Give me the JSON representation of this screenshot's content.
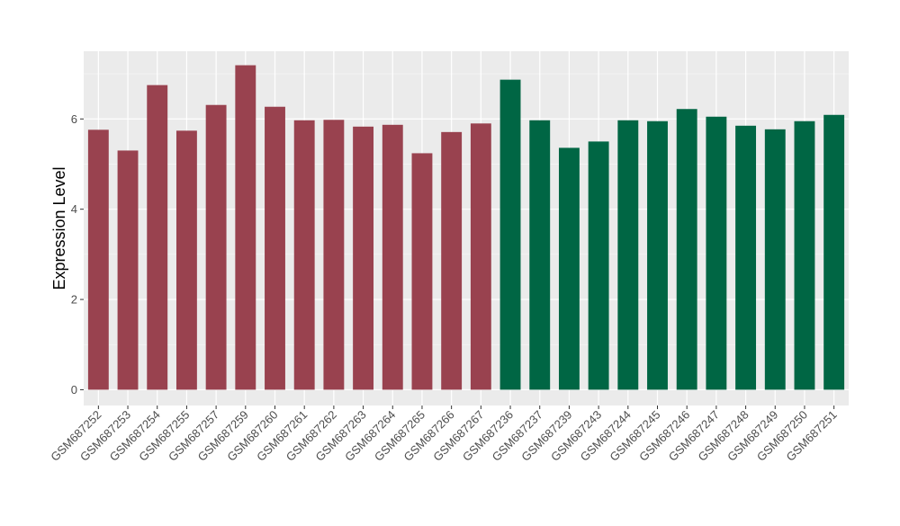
{
  "chart_data": {
    "type": "bar",
    "ylabel": "Expression Level",
    "ylim": [
      -0.35,
      7.5
    ],
    "yticks": [
      0,
      2,
      4,
      6
    ],
    "grid": true,
    "categories": [
      "GSM687252",
      "GSM687253",
      "GSM687254",
      "GSM687255",
      "GSM687257",
      "GSM687259",
      "GSM687260",
      "GSM687261",
      "GSM687262",
      "GSM687263",
      "GSM687264",
      "GSM687265",
      "GSM687266",
      "GSM687267",
      "GSM687236",
      "GSM687237",
      "GSM687239",
      "GSM687243",
      "GSM687244",
      "GSM687245",
      "GSM687246",
      "GSM687247",
      "GSM687248",
      "GSM687249",
      "GSM687250",
      "GSM687251"
    ],
    "values": [
      5.76,
      5.3,
      6.75,
      5.74,
      6.31,
      7.19,
      6.27,
      5.97,
      5.98,
      5.83,
      5.87,
      5.24,
      5.71,
      5.9,
      6.87,
      5.97,
      5.36,
      5.5,
      5.97,
      5.95,
      6.22,
      6.05,
      5.85,
      5.77,
      5.95,
      6.09
    ],
    "groups": [
      0,
      0,
      0,
      0,
      0,
      0,
      0,
      0,
      0,
      0,
      0,
      0,
      0,
      0,
      1,
      1,
      1,
      1,
      1,
      1,
      1,
      1,
      1,
      1,
      1,
      1
    ],
    "group_colors": [
      "#99424f",
      "#006644"
    ]
  },
  "colors": {
    "panel_bg": "#ebebeb",
    "grid_major": "#ffffff",
    "axis_text": "#4d4d4d",
    "title_text": "#000000"
  }
}
